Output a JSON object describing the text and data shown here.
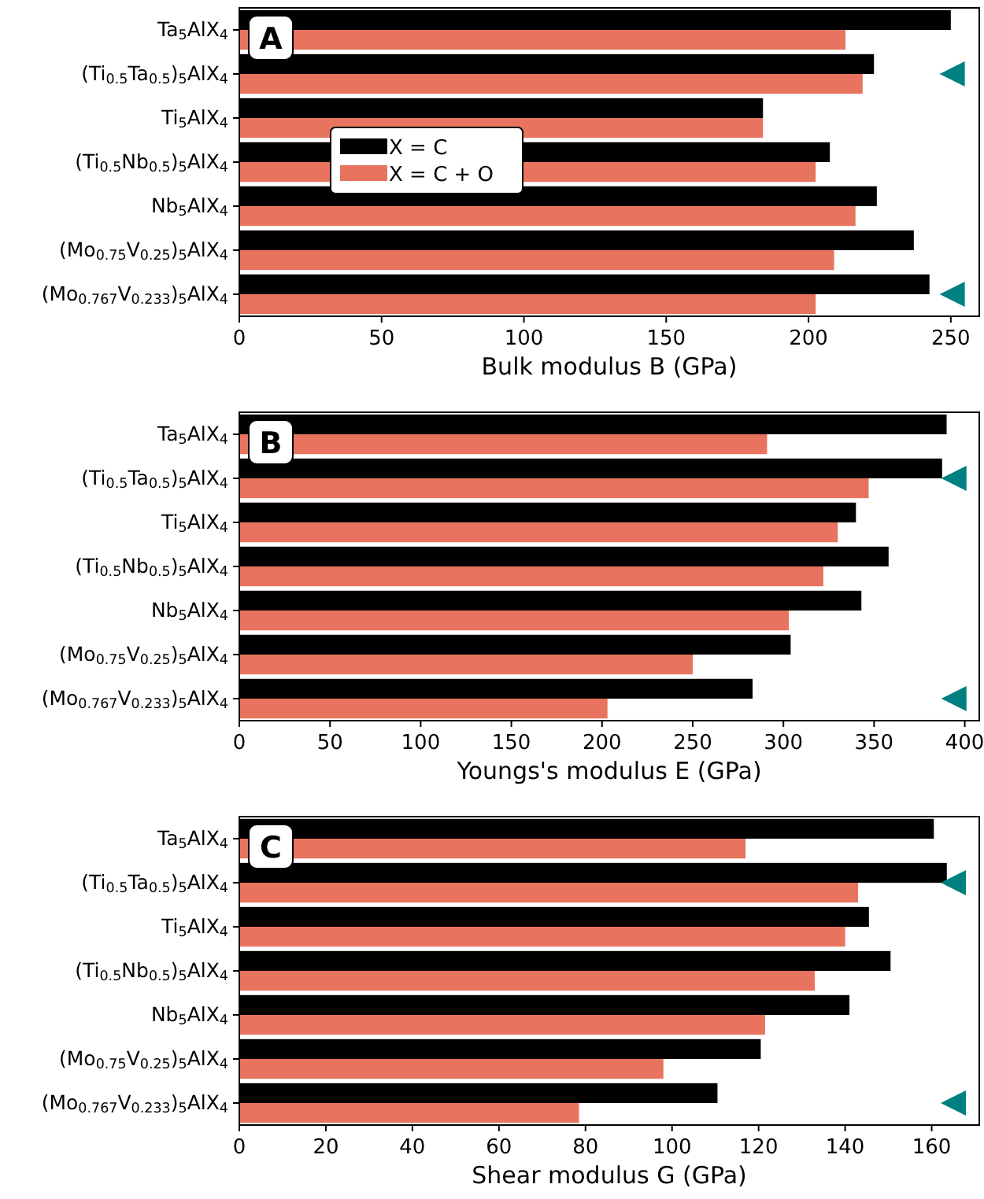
{
  "chart_data": [
    {
      "type": "bar",
      "orientation": "horizontal",
      "title": "A",
      "xlabel": "Bulk modulus B (GPa)",
      "categories": [
        "Ta$_{5}$AlX$_{4}$",
        "(Ti$_{0.5}$Ta$_{0.5}$)$_{5}$AlX$_{4}$",
        "Ti$_{5}$AlX$_{4}$",
        "(Ti$_{0.5}$Nb$_{0.5}$)$_{5}$AlX$_{4}$",
        "Nb$_{5}$AlX$_{4}$",
        "(Mo$_{0.75}$V$_{0.25}$)$_{5}$AlX$_{4}$",
        "(Mo$_{0.767}$V$_{0.233}$)$_{5}$AlX$_{4}$"
      ],
      "xlim": [
        0,
        260
      ],
      "xticks": [
        0,
        50,
        100,
        150,
        200,
        250
      ],
      "legend": "center left",
      "series": [
        {
          "name": "X = C",
          "color": "#000000",
          "values": [
            250,
            223,
            184,
            207.5,
            224,
            237,
            242.5
          ]
        },
        {
          "name": "X = C + O",
          "color": "#e8735f",
          "values": [
            213,
            219,
            184,
            202.5,
            216.5,
            209,
            202.5
          ]
        },
        {
          "type": "scatter",
          "color": "#008080",
          "marker": "triangle",
          "values": [
            null,
            250.5,
            null,
            null,
            null,
            null,
            250.5
          ]
        }
      ]
    },
    {
      "type": "bar",
      "orientation": "horizontal",
      "title": "B",
      "xlabel": "Youngs's modulus E (GPa)",
      "categories": [
        "Ta$_{5}$AlX$_{4}$",
        "(Ti$_{0.5}$Ta$_{0.5}$)$_{5}$AlX$_{4}$",
        "Ti$_{5}$AlX$_{4}$",
        "(Ti$_{0.5}$Nb$_{0.5}$)$_{5}$AlX$_{4}$",
        "Nb$_{5}$AlX$_{4}$",
        "(Mo$_{0.75}$V$_{0.25}$)$_{5}$AlX$_{4}$",
        "(Mo$_{0.767}$V$_{0.233}$)$_{5}$AlX$_{4}$"
      ],
      "xlim": [
        0,
        408
      ],
      "xticks": [
        0,
        50,
        100,
        150,
        200,
        250,
        300,
        350,
        400
      ],
      "series": [
        {
          "color": "#000000",
          "values": [
            390,
            387.5,
            340,
            358,
            343,
            304,
            283
          ]
        },
        {
          "color": "#e8735f",
          "values": [
            291,
            347,
            330,
            322,
            303,
            250,
            203
          ]
        },
        {
          "type": "scatter",
          "color": "#008080",
          "marker": "triangle",
          "values": [
            null,
            394,
            null,
            null,
            null,
            null,
            394
          ]
        }
      ]
    },
    {
      "type": "bar",
      "orientation": "horizontal",
      "title": "C",
      "xlabel": "Shear modulus G (GPa)",
      "categories": [
        "Ta$_{5}$AlX$_{4}$",
        "(Ti$_{0.5}$Ta$_{0.5}$)$_{5}$AlX$_{4}$",
        "Ti$_{5}$AlX$_{4}$",
        "(Ti$_{0.5}$Nb$_{0.5}$)$_{5}$AlX$_{4}$",
        "Nb$_{5}$AlX$_{4}$",
        "(Mo$_{0.75}$V$_{0.25}$)$_{5}$AlX$_{4}$",
        "(Mo$_{0.767}$V$_{0.233}$)$_{5}$AlX$_{4}$"
      ],
      "xlim": [
        0,
        171
      ],
      "xticks": [
        0,
        20,
        40,
        60,
        80,
        100,
        120,
        140,
        160
      ],
      "series": [
        {
          "color": "#000000",
          "values": [
            160.5,
            163.5,
            145.5,
            150.5,
            141,
            120.5,
            110.5
          ]
        },
        {
          "color": "#e8735f",
          "values": [
            117,
            143,
            140,
            133,
            121.5,
            98,
            78.5
          ]
        },
        {
          "type": "scatter",
          "color": "#008080",
          "marker": "triangle",
          "values": [
            null,
            165,
            null,
            null,
            null,
            null,
            165
          ]
        }
      ]
    }
  ]
}
